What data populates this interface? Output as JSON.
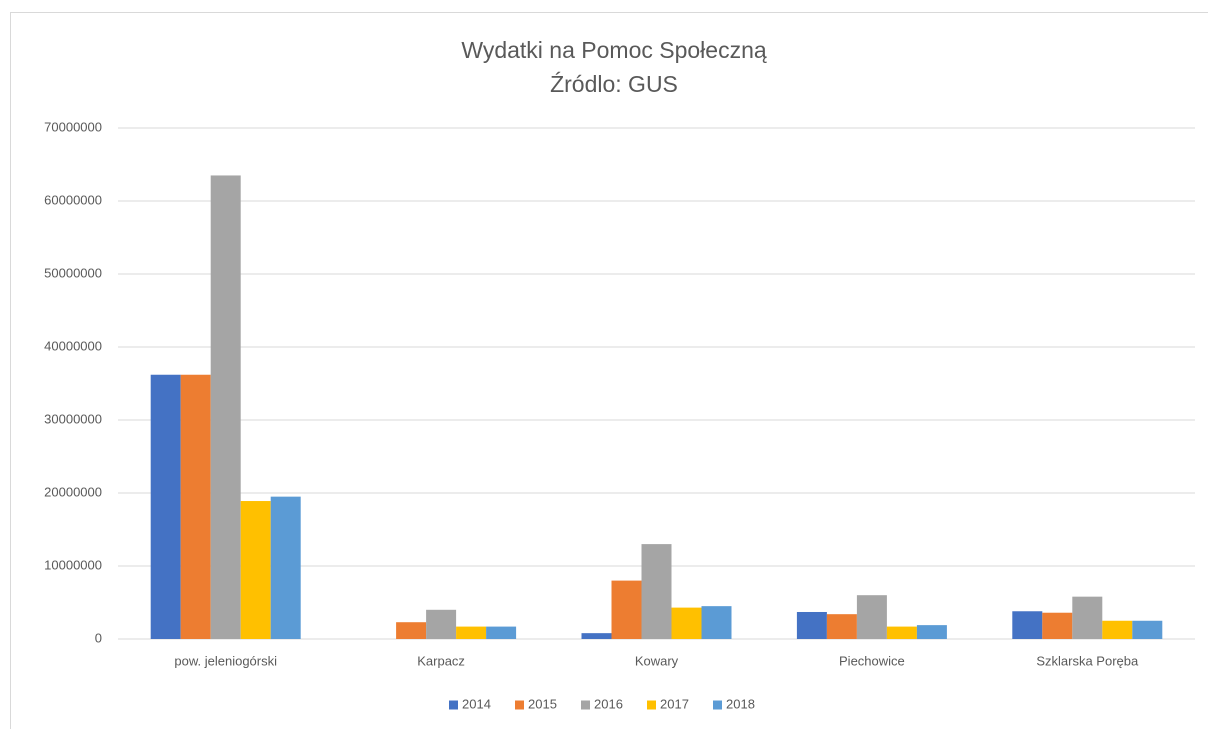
{
  "chart_data": {
    "type": "bar",
    "title": "Wydatki na Pomoc Społeczną",
    "subtitle": "Źródlo: GUS",
    "categories": [
      "pow. jeleniogórski",
      "Karpacz",
      "Kowary",
      "Piechowice",
      "Szklarska Poręba"
    ],
    "series": [
      {
        "name": "2014",
        "color": "#4472c4",
        "values": [
          36200000,
          0,
          800000,
          3700000,
          3800000
        ]
      },
      {
        "name": "2015",
        "color": "#ed7d31",
        "values": [
          36200000,
          2300000,
          8000000,
          3400000,
          3600000
        ]
      },
      {
        "name": "2016",
        "color": "#a5a5a5",
        "values": [
          63500000,
          4000000,
          13000000,
          6000000,
          5800000
        ]
      },
      {
        "name": "2017",
        "color": "#ffc000",
        "values": [
          18900000,
          1700000,
          4300000,
          1700000,
          2500000
        ]
      },
      {
        "name": "2018",
        "color": "#5b9bd5",
        "values": [
          19500000,
          1700000,
          4500000,
          1900000,
          2500000
        ]
      }
    ],
    "ylim": [
      0,
      70000000
    ],
    "yticks": [
      0,
      10000000,
      20000000,
      30000000,
      40000000,
      50000000,
      60000000,
      70000000
    ],
    "grid": true,
    "legend": "bottom"
  }
}
